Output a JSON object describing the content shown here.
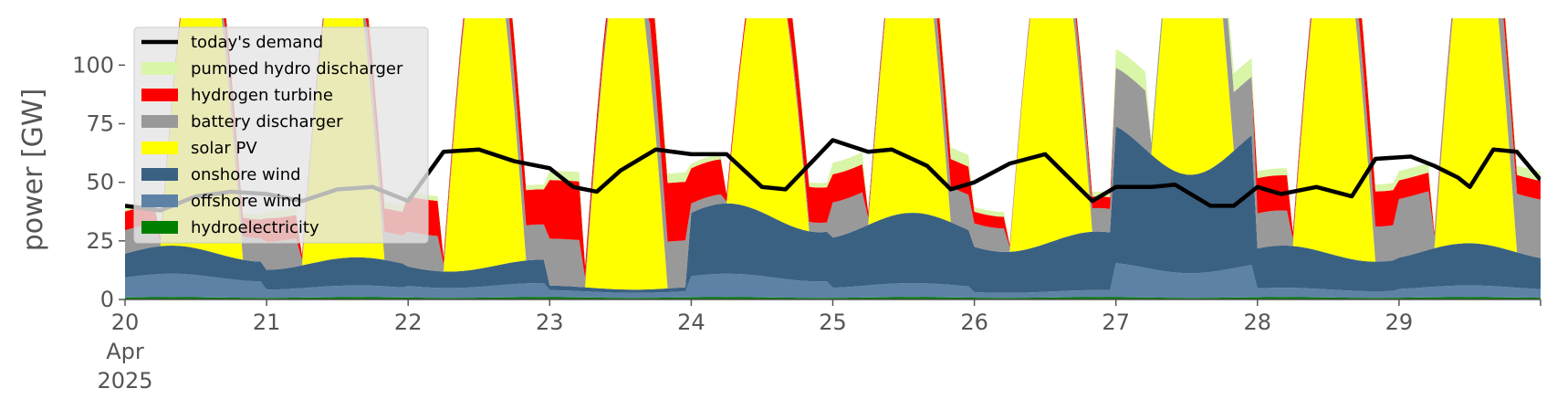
{
  "chart_data": {
    "type": "area",
    "stacked": true,
    "ylabel": "power [GW]",
    "ylim": [
      0,
      120
    ],
    "yticks": [
      0,
      25,
      50,
      75,
      100
    ],
    "xlim": [
      0,
      240
    ],
    "x_unit": "hours since 2025-04-20 00:00",
    "xtick_labels": [
      {
        "lines": [
          "20",
          "Apr",
          "2025"
        ],
        "x": 0
      },
      {
        "lines": [
          "21"
        ],
        "x": 24
      },
      {
        "lines": [
          "22"
        ],
        "x": 48
      },
      {
        "lines": [
          "23"
        ],
        "x": 72
      },
      {
        "lines": [
          "24"
        ],
        "x": 96
      },
      {
        "lines": [
          "25"
        ],
        "x": 120
      },
      {
        "lines": [
          "26"
        ],
        "x": 144
      },
      {
        "lines": [
          "27"
        ],
        "x": 168
      },
      {
        "lines": [
          "28"
        ],
        "x": 192
      },
      {
        "lines": [
          "29"
        ],
        "x": 216
      }
    ],
    "grid": false,
    "legend_position": "top-left",
    "legend": [
      {
        "name": "today's demand",
        "color": "#000000",
        "kind": "line"
      },
      {
        "name": "pumped hydro discharger",
        "color": "#d9f5a8",
        "kind": "patch"
      },
      {
        "name": "hydrogen turbine",
        "color": "#ff0000",
        "kind": "patch"
      },
      {
        "name": "battery discharger",
        "color": "#999999",
        "kind": "patch"
      },
      {
        "name": "solar PV",
        "color": "#ffff00",
        "kind": "patch"
      },
      {
        "name": "onshore wind",
        "color": "#3b6182",
        "kind": "patch"
      },
      {
        "name": "offshore wind",
        "color": "#5d82a6",
        "kind": "patch"
      },
      {
        "name": "hydroelectricity",
        "color": "#008000",
        "kind": "patch"
      }
    ],
    "stack_order": [
      "hydroelectricity",
      "offshore wind",
      "onshore wind",
      "solar PV",
      "battery discharger",
      "hydrogen turbine",
      "pumped hydro discharger"
    ],
    "day_profiles": [
      {
        "day": "2025-04-20",
        "hydro": 1,
        "offshore": 10,
        "onshore": 12,
        "solar_peak": 140,
        "battery": 10,
        "hydrogen": 8,
        "pumped": 2
      },
      {
        "day": "2025-04-21",
        "hydro": 1,
        "offshore": 5,
        "onshore": 12,
        "solar_peak": 140,
        "battery": 12,
        "hydrogen": 10,
        "pumped": 3
      },
      {
        "day": "2025-04-22",
        "hydro": 1,
        "offshore": 6,
        "onshore": 10,
        "solar_peak": 150,
        "battery": 15,
        "hydrogen": 15,
        "pumped": 2
      },
      {
        "day": "2025-04-23",
        "hydro": 1,
        "offshore": 3,
        "onshore": 2,
        "solar_peak": 150,
        "battery": 20,
        "hydrogen": 25,
        "pumped": 4
      },
      {
        "day": "2025-04-24",
        "hydro": 1,
        "offshore": 10,
        "onshore": 30,
        "solar_peak": 118,
        "battery": 4,
        "hydrogen": 15,
        "pumped": 2
      },
      {
        "day": "2025-04-25",
        "hydro": 1,
        "offshore": 6,
        "onshore": 30,
        "solar_peak": 140,
        "battery": 15,
        "hydrogen": 12,
        "pumped": 5
      },
      {
        "day": "2025-04-26",
        "hydro": 1,
        "offshore": 3,
        "onshore": 25,
        "solar_peak": 140,
        "battery": 10,
        "hydrogen": 5,
        "pumped": 2
      },
      {
        "day": "2025-04-27",
        "hydro": 1,
        "offshore": 15,
        "onshore": 60,
        "solar_peak": 150,
        "battery": 25,
        "hydrogen": 0,
        "pumped": 8
      },
      {
        "day": "2025-04-28",
        "hydro": 1,
        "offshore": 4,
        "onshore": 18,
        "solar_peak": 150,
        "battery": 15,
        "hydrogen": 15,
        "pumped": 3
      },
      {
        "day": "2025-04-29",
        "hydro": 1,
        "offshore": 5,
        "onshore": 18,
        "solar_peak": 150,
        "battery": 25,
        "hydrogen": 8,
        "pumped": 4
      }
    ],
    "demand": [
      [
        0,
        40
      ],
      [
        6,
        38
      ],
      [
        12,
        44
      ],
      [
        18,
        46
      ],
      [
        24,
        45
      ],
      [
        30,
        42
      ],
      [
        36,
        47
      ],
      [
        42,
        48
      ],
      [
        48,
        42
      ],
      [
        54,
        63
      ],
      [
        60,
        64
      ],
      [
        66,
        59
      ],
      [
        72,
        56
      ],
      [
        76,
        48
      ],
      [
        80,
        46
      ],
      [
        84,
        55
      ],
      [
        90,
        64
      ],
      [
        96,
        62
      ],
      [
        102,
        62
      ],
      [
        108,
        48
      ],
      [
        112,
        47
      ],
      [
        120,
        68
      ],
      [
        126,
        63
      ],
      [
        130,
        64
      ],
      [
        136,
        57
      ],
      [
        140,
        47
      ],
      [
        144,
        50
      ],
      [
        150,
        58
      ],
      [
        156,
        62
      ],
      [
        160,
        52
      ],
      [
        164,
        42
      ],
      [
        168,
        48
      ],
      [
        174,
        48
      ],
      [
        178,
        49
      ],
      [
        184,
        40
      ],
      [
        188,
        40
      ],
      [
        192,
        48
      ],
      [
        196,
        45
      ],
      [
        202,
        48
      ],
      [
        208,
        44
      ],
      [
        212,
        60
      ],
      [
        218,
        61
      ],
      [
        222,
        57
      ],
      [
        226,
        52
      ],
      [
        228,
        48
      ],
      [
        232,
        64
      ],
      [
        236,
        63
      ],
      [
        240,
        51
      ]
    ]
  }
}
